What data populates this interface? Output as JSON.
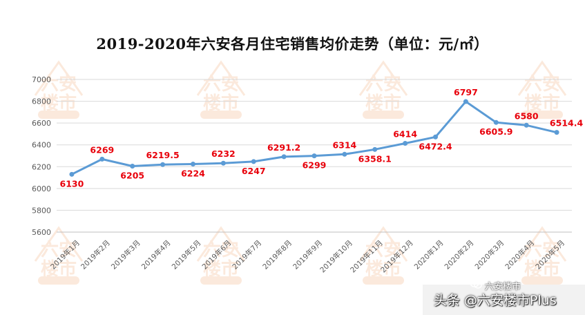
{
  "chart_data": {
    "type": "line",
    "title": "2019-2020年六安各月住宅销售均价走势（单位：元/㎡）",
    "categories": [
      "2019年1月",
      "2019年2月",
      "2019年3月",
      "2019年4月",
      "2019年5月",
      "2019年6月",
      "2019年7月",
      "2019年8月",
      "2019年9月",
      "2019年10月",
      "2019年11月",
      "2019年12月",
      "2020年1月",
      "2020年2月",
      "2020年3月",
      "2020年4月",
      "2020年5月"
    ],
    "series": [
      {
        "values": [
          6130,
          6269,
          6205,
          6219.5,
          6224,
          6232,
          6247,
          6291.2,
          6299,
          6314,
          6358.1,
          6414,
          6472.4,
          6797,
          6605.9,
          6580,
          6514.4
        ],
        "labels": [
          "6130",
          "6269",
          "6205",
          "6219.5",
          "6224",
          "6232",
          "6247",
          "6291.2",
          "6299",
          "6314",
          "6358.1",
          "6414",
          "6472.4",
          "6797",
          "6605.9",
          "6580",
          "6514.4"
        ]
      }
    ],
    "ylim": [
      5600,
      7000
    ],
    "yticks": [
      5600,
      5800,
      6000,
      6200,
      6400,
      6600,
      6800,
      7000
    ],
    "grid": true,
    "legend": "none",
    "colors": {
      "line": "#5b9bd5",
      "labels": "#e8000b",
      "grid": "#d9d9d9",
      "axis_text": "#595959"
    }
  },
  "watermark": {
    "logo_text": [
      "六安",
      "楼市"
    ],
    "color": "#f4b183"
  },
  "footer": {
    "channel_text": "六安楼市",
    "credit_text": "头条 @六安楼市Plus"
  }
}
